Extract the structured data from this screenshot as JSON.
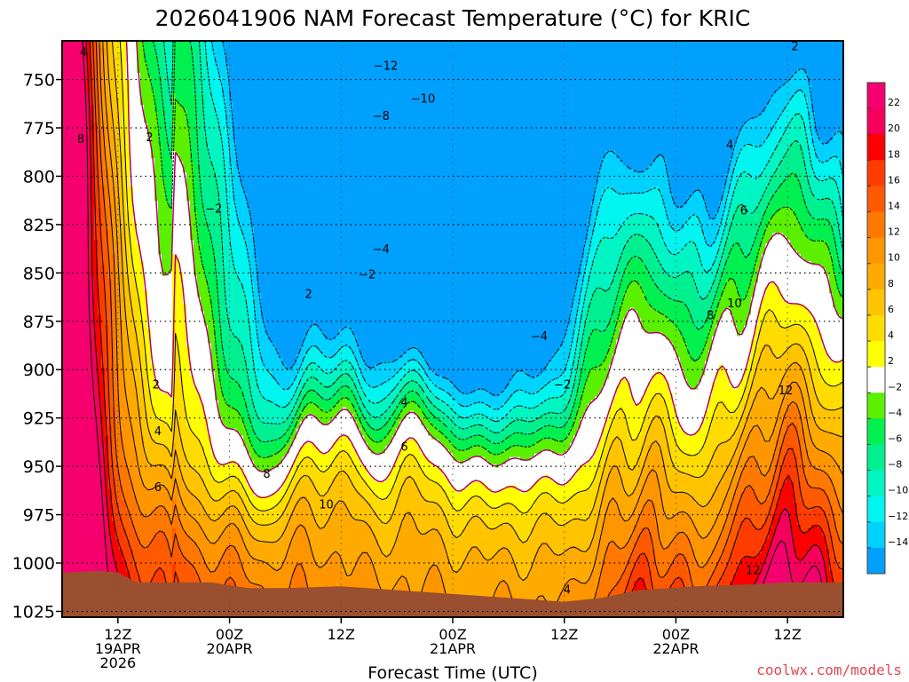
{
  "chart_data": {
    "type": "heatmap",
    "title": "2026041906 NAM Forecast Temperature (°C) for KRIC",
    "xlabel": "Forecast Time (UTC)",
    "ylabel": "",
    "y_axis": {
      "ticks": [
        "750",
        "775",
        "800",
        "825",
        "850",
        "875",
        "900",
        "925",
        "950",
        "975",
        "1000",
        "1025"
      ],
      "range": [
        730,
        1028
      ],
      "reversed": true
    },
    "x_axis": {
      "ticks": [
        {
          "hour": 6,
          "lines": [
            "12Z",
            "19APR",
            "2026"
          ]
        },
        {
          "hour": 18,
          "lines": [
            "00Z",
            "20APR"
          ]
        },
        {
          "hour": 30,
          "lines": [
            "12Z"
          ]
        },
        {
          "hour": 42,
          "lines": [
            "00Z",
            "21APR"
          ]
        },
        {
          "hour": 54,
          "lines": [
            "12Z"
          ]
        },
        {
          "hour": 66,
          "lines": [
            "00Z",
            "22APR"
          ]
        },
        {
          "hour": 78,
          "lines": [
            "12Z"
          ]
        }
      ],
      "range": [
        0,
        84
      ]
    },
    "grid": true,
    "legend": "right colorbar",
    "colorbar": {
      "labels": [
        "22",
        "20",
        "18",
        "16",
        "14",
        "12",
        "10",
        "8",
        "6",
        "4",
        "2",
        "−2",
        "−4",
        "−6",
        "−8",
        "−10",
        "−12",
        "−14"
      ],
      "bands": [
        {
          "from": 22,
          "to": 24,
          "color": "#f5006e"
        },
        {
          "from": 20,
          "to": 22,
          "color": "#f5005a"
        },
        {
          "from": 18,
          "to": 20,
          "color": "#ff0000"
        },
        {
          "from": 16,
          "to": 18,
          "color": "#ff3c00"
        },
        {
          "from": 14,
          "to": 16,
          "color": "#ff5a00"
        },
        {
          "from": 12,
          "to": 14,
          "color": "#ff7800"
        },
        {
          "from": 10,
          "to": 12,
          "color": "#ff9600"
        },
        {
          "from": 8,
          "to": 10,
          "color": "#ffaa00"
        },
        {
          "from": 6,
          "to": 8,
          "color": "#ffc300"
        },
        {
          "from": 4,
          "to": 6,
          "color": "#ffdc00"
        },
        {
          "from": 2,
          "to": 4,
          "color": "#ffff00"
        },
        {
          "from": -2,
          "to": 2,
          "color": "#ffffff"
        },
        {
          "from": -4,
          "to": -2,
          "color": "#5af000"
        },
        {
          "from": -6,
          "to": -4,
          "color": "#00f050"
        },
        {
          "from": -8,
          "to": -6,
          "color": "#00f090"
        },
        {
          "from": -10,
          "to": -8,
          "color": "#00f5c3"
        },
        {
          "from": -12,
          "to": -10,
          "color": "#00f5f0"
        },
        {
          "from": -14,
          "to": -12,
          "color": "#00d2ff"
        },
        {
          "from": -16,
          "to": -14,
          "color": "#00a0ff"
        }
      ]
    },
    "contour_labels": [
      {
        "text": "4",
        "hour": 2.3,
        "p": 736
      },
      {
        "text": "8",
        "hour": 2.0,
        "p": 781
      },
      {
        "text": "2",
        "hour": 9.4,
        "p": 780
      },
      {
        "text": "2",
        "hour": 10.1,
        "p": 908
      },
      {
        "text": "4",
        "hour": 10.3,
        "p": 932
      },
      {
        "text": "6",
        "hour": 10.3,
        "p": 961
      },
      {
        "text": "−2",
        "hour": 16.3,
        "p": 817
      },
      {
        "text": "8",
        "hour": 22.0,
        "p": 954
      },
      {
        "text": "2",
        "hour": 26.5,
        "p": 861
      },
      {
        "text": "10",
        "hour": 28.4,
        "p": 970
      },
      {
        "text": "−4",
        "hour": 34.3,
        "p": 838
      },
      {
        "text": "−2",
        "hour": 32.8,
        "p": 851
      },
      {
        "text": "4",
        "hour": 36.8,
        "p": 917
      },
      {
        "text": "6",
        "hour": 36.8,
        "p": 940
      },
      {
        "text": "−8",
        "hour": 34.3,
        "p": 769
      },
      {
        "text": "−10",
        "hour": 38.8,
        "p": 760
      },
      {
        "text": "−12",
        "hour": 34.8,
        "p": 743
      },
      {
        "text": "−4",
        "hour": 51.3,
        "p": 883
      },
      {
        "text": "−2",
        "hour": 53.8,
        "p": 908
      },
      {
        "text": "4",
        "hour": 54.3,
        "p": 1014
      },
      {
        "text": "4",
        "hour": 71.8,
        "p": 784
      },
      {
        "text": "6",
        "hour": 73.3,
        "p": 818
      },
      {
        "text": "8",
        "hour": 69.7,
        "p": 872
      },
      {
        "text": "10",
        "hour": 72.3,
        "p": 866
      },
      {
        "text": "12",
        "hour": 77.8,
        "p": 911
      },
      {
        "text": "12",
        "hour": 74.3,
        "p": 1004
      },
      {
        "text": "2",
        "hour": 78.8,
        "p": 733
      }
    ]
  },
  "footer": {
    "credit": "coolwx.com/models"
  }
}
